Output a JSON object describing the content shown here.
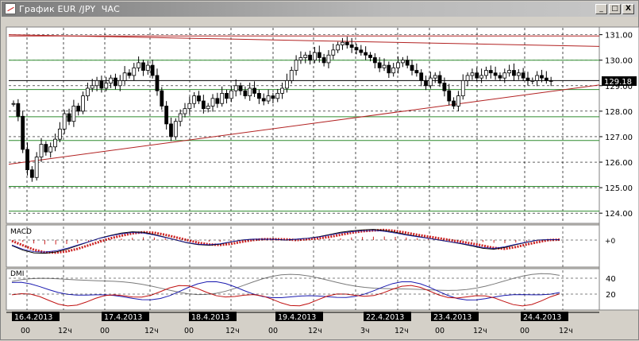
{
  "window": {
    "title": "График EUR /JPY  ЧАС",
    "minimize_glyph": "_",
    "maximize_glyph": "□",
    "close_glyph": "X"
  },
  "chart_data": [
    {
      "type": "candlestick",
      "title": "",
      "ylim": [
        123.6,
        131.3
      ],
      "y_ticks": [
        "131.00",
        "130.00",
        "129.00",
        "128.00",
        "127.00",
        "126.00",
        "125.00",
        "124.00"
      ],
      "y_tick_values": [
        131,
        130,
        129,
        128,
        127,
        126,
        125,
        124
      ],
      "last_price_label": "129.18",
      "last_price": 129.18,
      "horizontal_levels": [
        130.95,
        130.0,
        129.2,
        128.85,
        127.78,
        126.85,
        125.05,
        124.08
      ],
      "level_colors": {
        "support_resistance": "#2e8b2e",
        "trend": "#b22222",
        "last": "#000000"
      },
      "trendlines": [
        {
          "name": "upper",
          "from": [
            0,
            131.0
          ],
          "to": [
            124,
            130.55
          ]
        },
        {
          "name": "lower",
          "from": [
            0,
            125.92
          ],
          "to": [
            124,
            128.97
          ]
        }
      ],
      "closes": [
        128.3,
        127.8,
        126.5,
        125.7,
        125.4,
        126.2,
        126.7,
        126.4,
        126.6,
        126.9,
        127.3,
        127.9,
        127.6,
        128.2,
        128.0,
        128.6,
        128.9,
        129.0,
        129.2,
        128.9,
        129.1,
        129.3,
        129.0,
        129.2,
        129.5,
        129.4,
        129.7,
        129.9,
        129.6,
        129.8,
        129.4,
        128.8,
        128.2,
        127.5,
        127.0,
        127.6,
        127.9,
        128.1,
        128.3,
        128.6,
        128.4,
        128.1,
        128.2,
        128.5,
        128.3,
        128.7,
        128.5,
        128.8,
        129.0,
        128.8,
        128.6,
        128.9,
        128.7,
        128.5,
        128.4,
        128.6,
        128.5,
        128.7,
        128.9,
        129.2,
        129.6,
        130.0,
        130.1,
        130.2,
        130.0,
        130.3,
        130.1,
        129.9,
        130.2,
        130.4,
        130.6,
        130.7,
        130.6,
        130.5,
        130.4,
        130.3,
        130.2,
        130.1,
        129.9,
        129.7,
        129.8,
        129.5,
        129.7,
        129.9,
        130.0,
        129.8,
        129.6,
        129.5,
        129.2,
        129.0,
        129.3,
        129.4,
        129.1,
        128.8,
        128.4,
        128.2,
        128.6,
        129.2,
        129.4,
        129.5,
        129.3,
        129.4,
        129.6,
        129.5,
        129.4,
        129.3,
        129.5,
        129.6,
        129.4,
        129.5,
        129.3,
        129.2,
        129.2,
        129.4,
        129.3,
        129.2,
        129.18
      ],
      "x_dates": [
        "16.4.2013",
        "17.4.2013",
        "18.4.2013",
        "19.4.2013",
        "22.4.2013",
        "23.4.2013",
        "24.4.2013"
      ],
      "x_hours": [
        "00",
        "12ч",
        "00",
        "12ч",
        "00",
        "12ч",
        "00",
        "12ч",
        "3ч",
        "12ч",
        "00",
        "12ч",
        "00",
        "12ч"
      ]
    },
    {
      "type": "histogram+line",
      "title": "MACD",
      "zero_label": "+0",
      "series": [
        {
          "name": "MACD",
          "color": "#000000"
        },
        {
          "name": "signal",
          "color": "#cc2222"
        }
      ],
      "signal_values": [
        -0.05,
        -0.3,
        -0.55,
        -0.7,
        -0.72,
        -0.65,
        -0.5,
        -0.3,
        -0.1,
        0.1,
        0.25,
        0.38,
        0.45,
        0.42,
        0.3,
        0.15,
        0.0,
        -0.15,
        -0.25,
        -0.28,
        -0.22,
        -0.1,
        0.0,
        0.05,
        0.05,
        0.04,
        0.0,
        0.05,
        0.1,
        0.18,
        0.3,
        0.42,
        0.5,
        0.55,
        0.58,
        0.52,
        0.42,
        0.3,
        0.2,
        0.1,
        0.0,
        -0.1,
        -0.2,
        -0.32,
        -0.45,
        -0.5,
        -0.4,
        -0.25,
        -0.12,
        0.0,
        0.02
      ]
    },
    {
      "type": "line",
      "title": "DMI",
      "y_ticks": [
        "40",
        "20"
      ],
      "y_tick_values": [
        40,
        20
      ],
      "series": [
        {
          "name": "ADX",
          "color": "#7a7a7a"
        },
        {
          "name": "+DI",
          "color": "#1a1ab0"
        },
        {
          "name": "-DI",
          "color": "#c01010"
        }
      ]
    }
  ]
}
